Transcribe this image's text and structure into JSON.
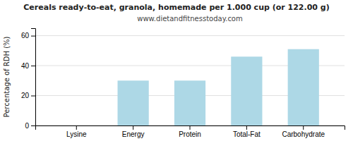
{
  "chart_data": {
    "type": "bar",
    "title": "Cereals ready-to-eat, granola, homemade per 1.000 cup (or 122.00 g)",
    "subtitle": "www.dietandfitnesstoday.com",
    "categories": [
      "Lysine",
      "Energy",
      "Protein",
      "Total-Fat",
      "Carbohydrate"
    ],
    "values": [
      0,
      30,
      30,
      46,
      51
    ],
    "color": "#add8e6",
    "ylabel": "Percentage of RDH (%)",
    "ylim": [
      0,
      65
    ],
    "yticks": [
      0,
      20,
      40,
      60
    ],
    "grid": true
  }
}
